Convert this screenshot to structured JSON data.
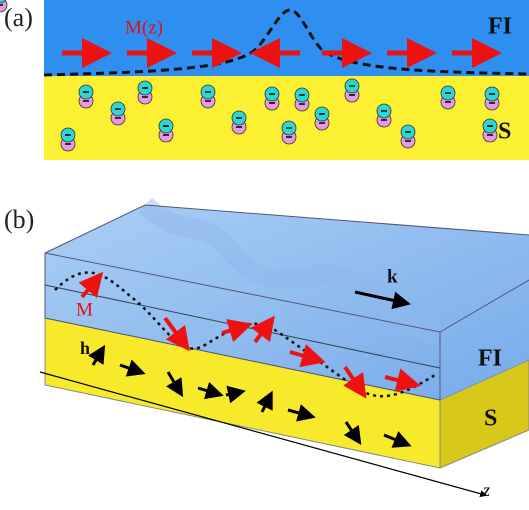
{
  "panel_a": {
    "label": "(a)",
    "magnetization_label": "M(z)",
    "top_layer": "FI",
    "bottom_layer": "S"
  },
  "panel_b": {
    "label": "(b)",
    "wavevector_label": "k",
    "magnetization_label": "M",
    "field_label": "h",
    "top_layer": "FI",
    "bottom_layer": "S",
    "axis_label": "z"
  }
}
